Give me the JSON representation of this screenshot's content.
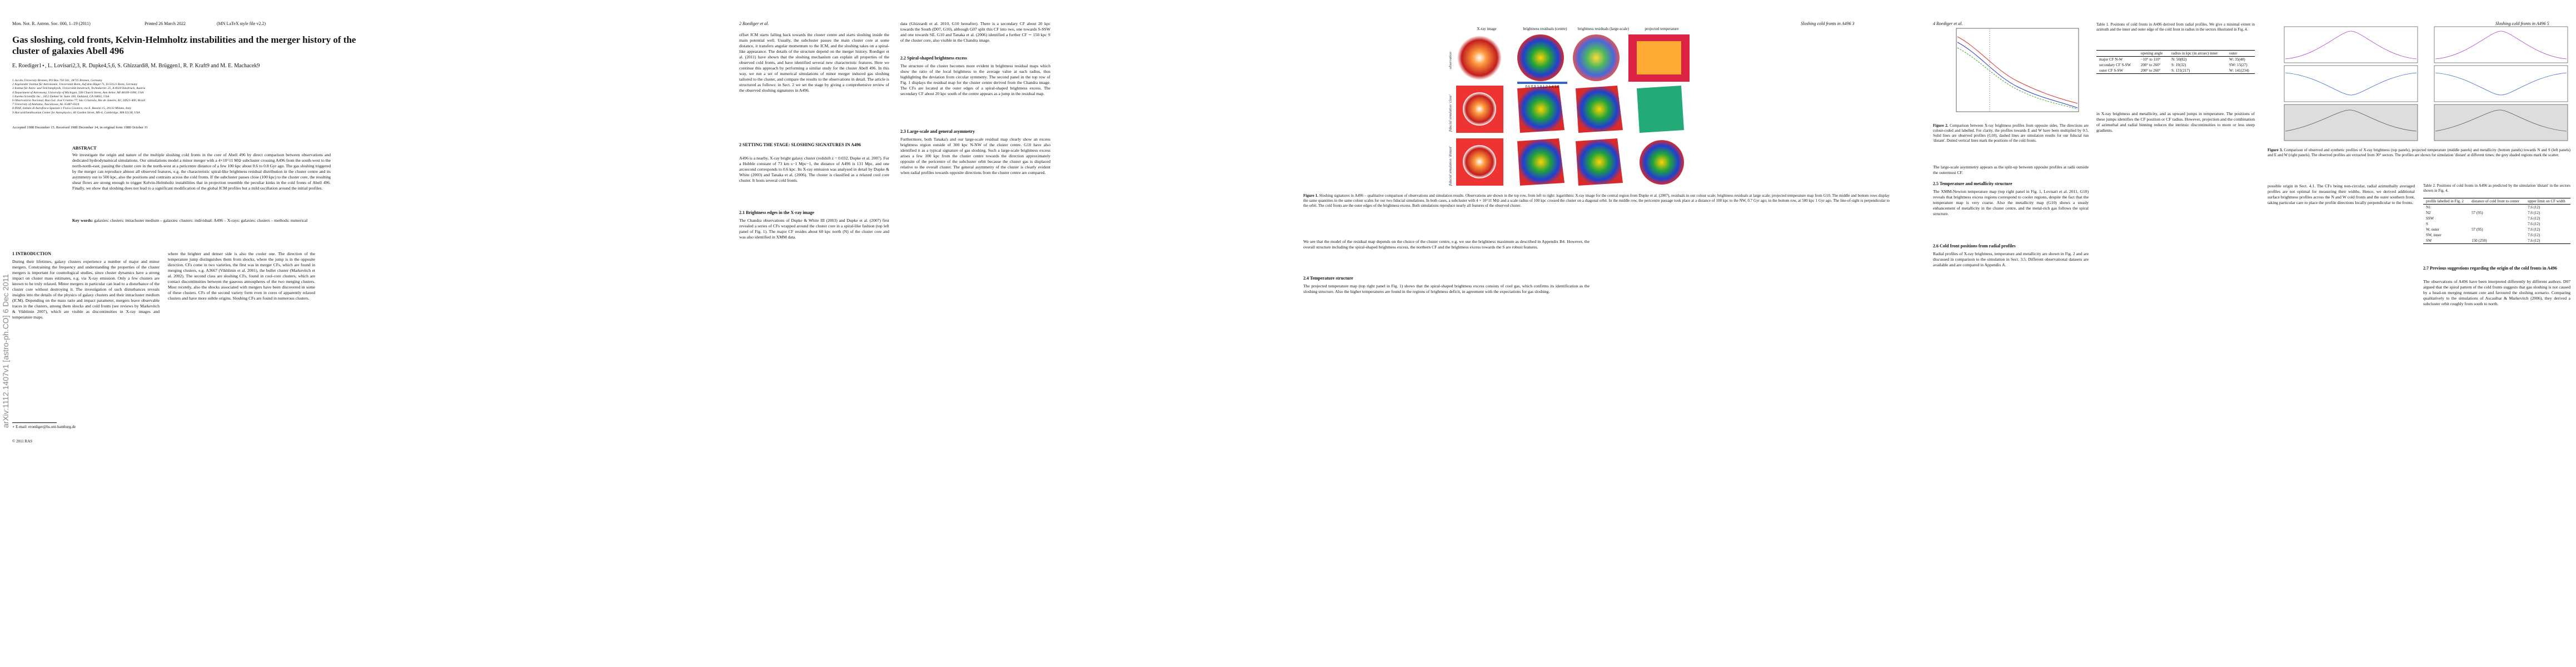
{
  "pages": [
    {
      "header_left": "Mon. Not. R. Astron. Soc. 000, 1–19 (2011)",
      "header_mid": "Printed 26 March 2022",
      "header_right": "(MN LaTeX style file v2.2)",
      "title": "Gas sloshing, cold fronts, Kelvin-Helmholtz instabilities and the merger history of the cluster of galaxies Abell 496",
      "authors": "E. Roediger1⋆, L. Lovisari2,3, R. Dupke4,5,6, S. Ghizzardi8, M. Brüggen1, R. P. Kraft9 and M. E. Machacek9",
      "affiliations": [
        "1 Jacobs University Bremen, PO Box 750 561, 28725 Bremen, Germany",
        "2 Argelander Institut für Astronomie, Universität Bonn, Auf dem Hügel 71, D-53121 Bonn, Germany",
        "3 Institut für Astro- und Teilchenphysik, Universität Innsbruck, Technikerstr. 25, A-6020 Innsbruck, Austria",
        "4 Department of Astronomy, University of Michigan, 500 Church Street, Ann Arbor, MI 48109-1090, USA",
        "5 Eureka Scientific Inc., 2452 Delmer St. Suite 100, Oakland, CA 94602, USA",
        "6 Observatório Nacional, Rua Gal. José Cristino 77, São Cristóvão, Rio de Janeiro, RJ, 20921-400, Brazil",
        "7 University of Alabama, Tuscaloosa, AL 35487-0324",
        "8 INAF, Istituto di Astrofisica Spaziale e Fisica Cosmica, via E. Bassini 15, 20133 Milano, Italy",
        "9 Harvard/Smithsonian Center for Astrophysics, 60 Garden Street, MS-4, Cambridge, MA 02138, USA"
      ],
      "dates": "Accepted 1988 December 15. Received 1988 December 14; in original form 1988 October 11",
      "abstract_heading": "ABSTRACT",
      "abstract": "We investigate the origin and nature of the multiple sloshing cold fronts in the core of Abell 496 by direct comparison between observations and dedicated hydrodynamical simulations. Our simulations model a minor merger with a 4×10^11 M⊙ subcluster crossing A496 from the south-west to the north-north-east, passing the cluster core in the north-west at a pericentre distance of a few 100 kpc about 0.6 to 0.8 Gyr ago. The gas sloshing triggered by the merger can reproduce almost all observed features, e.g. the characteristic spiral-like brightness residual distribution in the cluster centre and its asymmetry out to 500 kpc, also the positions and contrasts across the cold fronts. If the subcluster passes close (100 kpc) to the cluster core, the resulting shear flows are strong enough to trigger Kelvin-Helmholtz instabilities that in projection resemble the peculiar kinks in the cold fronts of Abell 496. Finally, we show that sloshing does not lead to a significant modification of the global ICM profiles but a mild oscillation around the initial profiles.",
      "keywords_label": "Key words:",
      "keywords": "galaxies: clusters: intracluster medium – galaxies: clusters: individual: A496 – X-rays: galaxies: clusters – methods: numerical",
      "arxiv": "arXiv:1112.1407v1  [astro-ph.CO]  6 Dec 2011",
      "intro_heading": "1 INTRODUCTION",
      "intro_left": "During their lifetimes, galaxy clusters experience a number of major and minor mergers. Constraining the frequency and understanding the properties of the cluster mergers is important for cosmological studies, since cluster dynamics have a strong impact on cluster mass estimates, e.g. via X-ray emission. Only a few clusters are known to be truly relaxed. Minor mergers in particular can lead to a disturbance of the cluster core without destroying it. The investigation of such disturbances reveals insights into the details of the physics of galaxy clusters and their intracluster medium (ICM). Depending on the mass ratio and impact parameter, mergers leave observable traces in the clusters, among them shocks and cold fronts (see reviews by Markevitch & Vikhlinin 2007), which are visible as discontinuities in X-ray images and temperature maps.",
      "intro_right": "where the brighter and denser side is also the cooler one. The direction of the temperature jump distinguishes them from shocks, where the jump is in the opposite direction. CFs come in two varieties, the first was in merger CFs, which are found in merging clusters, e.g. A3667 (Vikhlinin et al. 2001), the bullet cluster (Markevitch et al. 2002). The second class are sloshing CFs, found in cool-core clusters, which are contact discontinuities between the gaseous atmospheres of the two merging clusters. Most recently, also the shocks associated with mergers have been discovered in some of these clusters. CFs of the second variety form even in cores of apparently relaxed clusters and have more subtle origins. Sloshing CFs are found in numerous clusters.",
      "footnote": "⋆ E-mail: eroediger@hs.uni-hamburg.de",
      "footer": "© 2011 RAS"
    },
    {
      "header": "2   Roediger et al.",
      "col1a": "offset ICM starts falling back towards the cluster centre and starts sloshing inside the main potential well. Usually, the subcluster passes the main cluster core at some distance, it transfers angular momentum to the ICM, and the sloshing takes on a spiral-like appearance. The details of the structure depend on the merger history. Roediger et al. (2011) have shown that the sloshing mechanism can explain all properties of the observed cold fronts, and have identified several new characteristic features. Here we continue this approach by performing a similar study for the cluster Abell 496. In this way, we run a set of numerical simulations of minor merger induced gas sloshing tailored to the cluster, and compare the results to the observations in detail. The article is structured as follows: in Sect. 2 we set the stage by giving a comprehensive review of the observed sloshing signatures in A496.",
      "sec2": "2 SETTING THE STAGE: SLOSHING SIGNATURES IN A496",
      "col1b": "A496 is a nearby, X-ray bright galaxy cluster (redshift z = 0.032, Dupke et al. 2007). For a Hubble constant of 73 km s−1 Mpc−1, the distance of A496 is 131 Mpc, and one arcsecond corresponds to 0.6 kpc. Its X-ray emission was analysed in detail by Dupke & White (2003) and Tanaka et al. (2006). The cluster is classified as a relaxed cool core cluster. It hosts several cold fronts.",
      "sec21": "2.1 Brightness edges in the X-ray image",
      "col1c": "The Chandra observations of Dupke & White III (2003) and Dupke et al. (2007) first revealed a series of CFs wrapped around the cluster core in a spiral-like fashion (top left panel of Fig. 1). The major CF resides about 60 kpc north (N) of the cluster core and was also identified in XMM data.",
      "col2a": "data (Ghizzardi et al. 2010, G10 hereafter). There is a secondary CF about 20 kpc towards the South (D07, G10), although G07 split this CF into two, one towards S-SSW and one towards SE. G10 and Tanaka et al. (2006) identified a further CF ∼ 150 kpc S of the cluster core, also visible in the Chandra image.",
      "sec22": "2.2 Spiral-shaped brightness excess",
      "col2b": "The structure of the cluster becomes more evident in brightness residual maps which show the ratio of the local brightness to the average value at each radius, thus highlighting the deviation from circular symmetry. The second panel in the top row of Fig. 1 displays the residual map for the cluster centre derived from the Chandra image. The CFs are located at the outer edges of a spiral-shaped brightness excess. The secondary CF about 20 kpc south of the centre appears as a jump in the residual map.",
      "sec23": "2.3 Large-scale and general asymmetry",
      "col2c": "Furthermore, both Tanaka's and our large-scale residual map clearly show an excess brightness region outside of 300 kpc N-NW of the cluster centre. G10 have also identified it as a typical signature of gas sloshing. Such a large-scale brightness excess arises a few 100 kpc from the cluster centre towards the direction approximately opposite of the pericentre of the subcluster orbit because the cluster gas is displaced relative to the overall cluster. The general asymmetry of the cluster is clearly evident when radial profiles towards opposite directions from the cluster centre are compared."
    },
    {
      "header": "Sloshing cold fronts in A496   3",
      "panel_titles": [
        "X-ray image",
        "brightness residuals (centre)",
        "brightness residuals (large-scale)",
        "projected temperature"
      ],
      "row_labels": [
        "observation",
        "fiducial simulation 'close'",
        "fiducial simulation 'distant'"
      ],
      "colorbar": "0.6  0.8  1.0  1.2  1.4  1.6",
      "caption_label": "Figure 1.",
      "caption": "Sloshing signatures in A496 – qualitative comparison of observations and simulation results. Observations are shown in the top row, from left to right: logarithmic X-ray image for the central region from Dupke et al. (2007), residuals in our colour scale; brightness residuals at large scale; projected temperature map from G10. The middle and bottom rows display the same quantities in the same colour scales for our two fiducial simulations. In both cases, a subcluster with 4 × 10^11 M⊙ and a scale radius of 100 kpc crossed the cluster on a diagonal orbit. In the middle row, the pericentre passage took place at a distance of 100 kpc to the NW, 0.7 Gyr ago; in the bottom row, at 500 kpc 1 Gyr ago. The line-of-sight is perpendicular to the orbit. The cold fronts are the outer edges of the brightness excess. Both simulations reproduce nearly all features of the observed cluster.",
      "col1": "We see that the model of the residual map depends on the choice of the cluster centre, e.g. we use the brightness maximum as described in Appendix B4. However, the overall structure including the spiral-shaped brightness excess, the northern CF and the brightness excess towards the S are robust features.",
      "sec24": "2.4 Temperature structure",
      "col2": "The projected temperature map (top right panel in Fig. 1) shows that the spiral-shaped brightness excess consists of cool gas, which confirms its identification as the sloshing structure. Also the higher temperatures are found in the regions of brightness deficit, in agreement with the expectations for gas sloshing."
    },
    {
      "header": "4   Roediger et al.",
      "fig_caption_label": "Figure 2.",
      "fig_caption": "Comparison between X-ray brightness profiles from opposite sides. The directions are colour-coded and labelled. For clarity, the profiles towards E and W have been multiplied by 0.5. Solid lines are observed profiles (G10), dashed lines are simulation results for our fiducial run 'distant'. Dotted vertical lines mark the positions of the cold fronts.",
      "text1": "The large-scale asymmetry appears as the split-up between opposite profiles at radii outside the outermost CF.",
      "sec25": "2.5 Temperature and metallicity structure",
      "text2": "The XMM-Newton temperature map (top right panel in Fig. 1, Lovisari et al. 2011, G10) reveals that brightness excess regions correspond to cooler regions, despite the fact that the temperature map is very coarse. Also the metallicity map (G10) shows a steady enhancement of metallicity in the cluster centre, and the metal-rich gas follows the spiral structure.",
      "sec26": "2.6 Cold front positions from radial profiles",
      "text3": "Radial profiles of X-ray brightness, temperature and metallicity are shown in Fig. 2 and are discussed in comparison to the simulation in Sect. 3.5. Different observational datasets are available and are compared in Appendix A.",
      "table1_caption": "Table 1. Positions of cold fronts in A496 derived from radial profiles. We give a minimal extent in azimuth and the inner and outer edge of the cold front in radius in the sectors illustrated in Fig. 4.",
      "table1_head": [
        "",
        "opening angle",
        "radius in kpc (in arcsec) inner",
        "outer"
      ],
      "table1_rows": [
        [
          "major CF N-W",
          "−10° to 110°",
          "N: 50(82)",
          "W: 35(40)"
        ],
        [
          "secondary CF S-SW",
          "200° to 260°",
          "S: 19(32)",
          "SW: 15(27)"
        ],
        [
          "outer CF S-SW",
          "200° to 260°",
          "S: 131(217)",
          "W: 141(234)"
        ]
      ],
      "text4": "in X-ray brightness and metallicity, and as upward jumps in temperature. The positions of these jumps identifies the CF position or CF radius. However, projection and the combination of azimuthal and radial binning reduces the intrinsic discontinuities to more or less steep gradients."
    },
    {
      "header": "Sloshing cold fronts in A496   5",
      "fig_caption_label": "Figure 3.",
      "fig_caption": "Comparison of observed and synthetic profiles of X-ray brightness (top panels), projected temperature (middle panels) and metallicity (bottom panels) towards N and S (left panels) and E and W (right panels). The observed profiles are extracted from 30° sectors. The profiles are shown for simulation 'distant' at different times; the grey shaded regions mark the scatter.",
      "text1": "possible origin in Sect. 4.1. The CFs being non-circular, radial azimuthally averaged profiles are not optimal for measuring their widths. Hence, we derived additional surface brightness profiles across the N and W cold fronts and the outer southern front, taking particular care to place the profile directions locally perpendicular to the fronts.",
      "table2_caption": "Table 2. Positions of cold fronts in A496 as predicted by the simulation 'distant' in the sectors shown in Fig. 4.",
      "table2_head": [
        "profile labelled in Fig. 2",
        "distance of cold front to center",
        "upper limit on CF width"
      ],
      "table2_rows": [
        [
          "N1",
          "",
          "7.6 (12)"
        ],
        [
          "N2",
          "57 (95)",
          "7.6 (12)"
        ],
        [
          "SSW",
          "",
          "7.6 (12)"
        ],
        [
          "S",
          "",
          "7.6 (12)"
        ],
        [
          "W, outer",
          "57 (95)",
          "7.6 (12)"
        ],
        [
          "SW, inner",
          "",
          "7.6 (12)"
        ],
        [
          "SW",
          "150 (250)",
          "7.6 (12)"
        ]
      ],
      "sec27": "2.7 Previous suggestions regarding the origin of the cold fronts in A496",
      "text2": "The observations of A496 have been interpreted differently by different authors. D07 argued that the spiral pattern of the cold fronts suggests that gas sloshing is not caused by a head-on merging remnant core and favoured the sloshing scenario. Comparing qualitatively to the simulations of Ascasibar & Markevitch (2006), they derived a subcluster orbit roughly from south to north."
    }
  ]
}
